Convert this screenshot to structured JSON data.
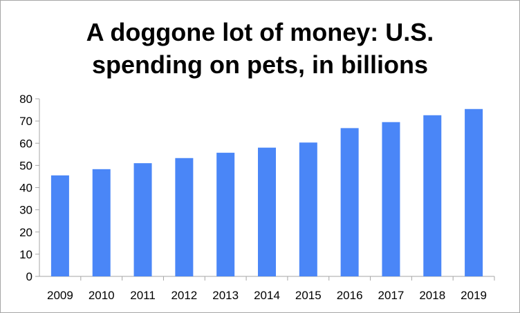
{
  "chart_data": {
    "type": "bar",
    "title_lines": [
      "A doggone lot of money: U.S.",
      "spending on pets, in billions"
    ],
    "categories": [
      "2009",
      "2010",
      "2011",
      "2012",
      "2013",
      "2014",
      "2015",
      "2016",
      "2017",
      "2018",
      "2019"
    ],
    "values": [
      45.5,
      48.3,
      51.0,
      53.3,
      55.7,
      58.0,
      60.3,
      66.8,
      69.5,
      72.6,
      75.4
    ],
    "yticks": [
      "0",
      "10",
      "20",
      "30",
      "40",
      "50",
      "60",
      "70",
      "80"
    ],
    "ylim": [
      0,
      80
    ],
    "grid": false,
    "legend": "none",
    "colors": {
      "bar": "#4a86f7",
      "axis": "#a6a6a6",
      "frame": "#a6a6a6"
    }
  }
}
